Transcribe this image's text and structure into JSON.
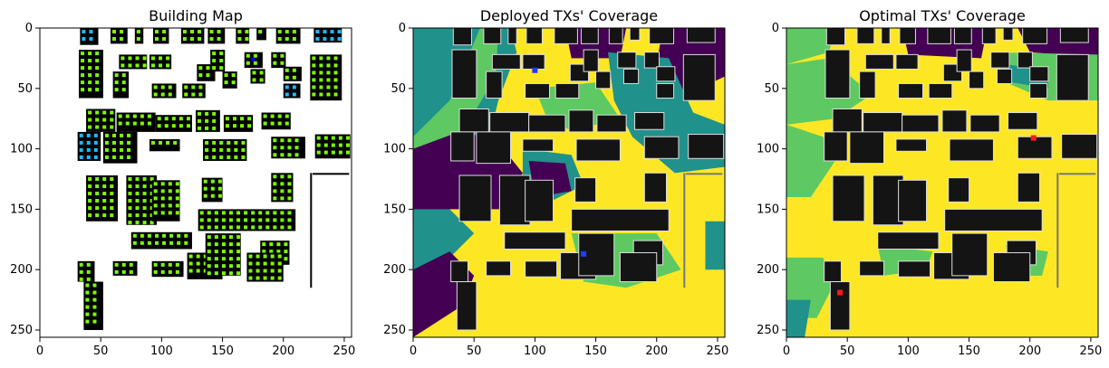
{
  "chart_data": [
    {
      "type": "heatmap",
      "title": "Building Map",
      "xlim": [
        0,
        256
      ],
      "ylim": [
        256,
        0
      ],
      "xticks": [
        0,
        50,
        100,
        150,
        200,
        250
      ],
      "yticks": [
        0,
        50,
        100,
        150,
        200,
        250
      ],
      "colors": {
        "background": "#ffffff",
        "building": "#000000",
        "candidate_site": "#7cfc00",
        "deployed_site": "#1fb8ff"
      },
      "deployed_markers": [
        [
          175,
          26
        ]
      ]
    },
    {
      "type": "heatmap",
      "title": "Deployed TXs' Coverage",
      "xlim": [
        0,
        256
      ],
      "ylim": [
        256,
        0
      ],
      "xticks": [
        0,
        50,
        100,
        150,
        200,
        250
      ],
      "yticks": [
        0,
        50,
        100,
        150,
        200,
        250
      ],
      "colors": {
        "strong": "#fde725",
        "good": "#5ec962",
        "medium": "#21918c",
        "weak": "#440154",
        "building": "#141414"
      },
      "tx_markers": [
        [
          100,
          35
        ],
        [
          140,
          187
        ]
      ],
      "tx_color": "#1f3cff"
    },
    {
      "type": "heatmap",
      "title": "Optimal TXs' Coverage",
      "xlim": [
        0,
        256
      ],
      "ylim": [
        256,
        0
      ],
      "xticks": [
        0,
        50,
        100,
        150,
        200,
        250
      ],
      "yticks": [
        0,
        50,
        100,
        150,
        200,
        250
      ],
      "colors": {
        "strong": "#fde725",
        "good": "#5ec962",
        "medium": "#21918c",
        "weak": "#440154",
        "building": "#141414"
      },
      "tx_markers": [
        [
          203,
          91
        ],
        [
          44,
          219
        ]
      ],
      "tx_color": "#ff1a1a"
    }
  ]
}
